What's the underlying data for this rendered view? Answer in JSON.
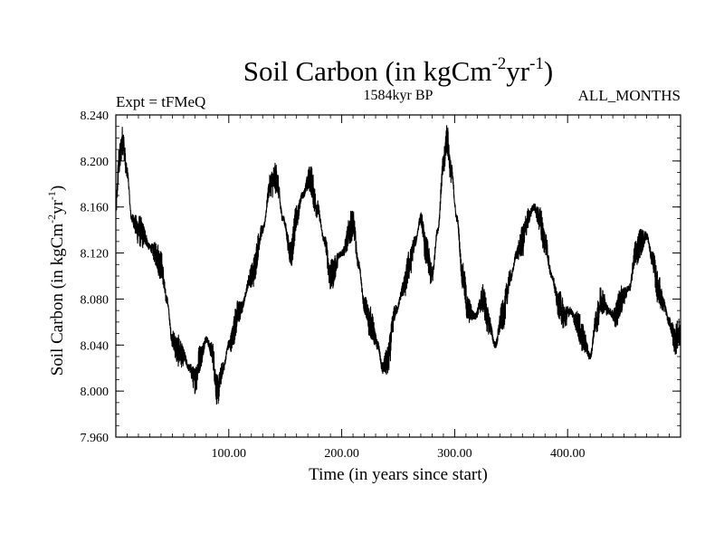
{
  "chart_data": {
    "type": "line",
    "title_main": "Soil Carbon (in kgCm",
    "title_sup1": "-2",
    "title_mid": "yr",
    "title_sup2": "-1",
    "title_end": ")",
    "subtitle_left": "Expt = tFMeQ",
    "subtitle_center": "1584kyr BP",
    "subtitle_right": "ALL_MONTHS",
    "xlabel": "Time (in years since start)",
    "ylabel_main": "Soil Carbon (in kgCm",
    "ylabel_sup1": "-2",
    "ylabel_mid": "yr",
    "ylabel_sup2": "-1",
    "ylabel_end": ")",
    "xlim": [
      0,
      500
    ],
    "ylim": [
      7.96,
      8.24
    ],
    "x_ticks": [
      100,
      200,
      300,
      400
    ],
    "x_tick_labels": [
      "100.00",
      "200.00",
      "300.00",
      "400.00"
    ],
    "y_ticks": [
      7.96,
      8.0,
      8.04,
      8.08,
      8.12,
      8.16,
      8.2,
      8.24
    ],
    "y_tick_labels": [
      "7.960",
      "8.000",
      "8.040",
      "8.080",
      "8.120",
      "8.160",
      "8.200",
      "8.240"
    ],
    "series": [
      {
        "name": "Soil Carbon",
        "color": "#000000",
        "noise_amplitude": 0.014,
        "x": [
          0,
          3,
          6,
          10,
          14,
          20,
          25,
          30,
          35,
          40,
          45,
          50,
          55,
          60,
          65,
          70,
          75,
          80,
          85,
          90,
          95,
          100,
          110,
          120,
          130,
          137,
          142,
          148,
          155,
          160,
          165,
          172,
          178,
          185,
          190,
          200,
          210,
          215,
          220,
          225,
          232,
          236,
          240,
          248,
          255,
          260,
          265,
          270,
          275,
          280,
          285,
          290,
          293,
          297,
          302,
          307,
          312,
          318,
          325,
          330,
          336,
          342,
          350,
          355,
          360,
          365,
          370,
          375,
          380,
          386,
          392,
          398,
          402,
          408,
          414,
          420,
          425,
          430,
          436,
          442,
          448,
          455,
          460,
          465,
          470,
          475,
          480,
          485,
          490,
          495,
          499
        ],
        "y": [
          8.16,
          8.2,
          8.218,
          8.19,
          8.15,
          8.14,
          8.135,
          8.125,
          8.12,
          8.11,
          8.08,
          8.045,
          8.035,
          8.03,
          8.02,
          8.01,
          8.03,
          8.045,
          8.035,
          8.0,
          8.02,
          8.04,
          8.07,
          8.1,
          8.14,
          8.18,
          8.185,
          8.15,
          8.12,
          8.15,
          8.17,
          8.185,
          8.16,
          8.13,
          8.1,
          8.12,
          8.145,
          8.11,
          8.075,
          8.06,
          8.04,
          8.02,
          8.025,
          8.07,
          8.09,
          8.11,
          8.13,
          8.15,
          8.12,
          8.1,
          8.14,
          8.195,
          8.22,
          8.19,
          8.15,
          8.1,
          8.07,
          8.065,
          8.08,
          8.06,
          8.04,
          8.065,
          8.1,
          8.12,
          8.13,
          8.15,
          8.16,
          8.15,
          8.13,
          8.1,
          8.075,
          8.065,
          8.07,
          8.06,
          8.045,
          8.03,
          8.06,
          8.08,
          8.07,
          8.065,
          8.08,
          8.09,
          8.12,
          8.13,
          8.135,
          8.115,
          8.09,
          8.075,
          8.06,
          8.045,
          8.05
        ]
      }
    ]
  }
}
